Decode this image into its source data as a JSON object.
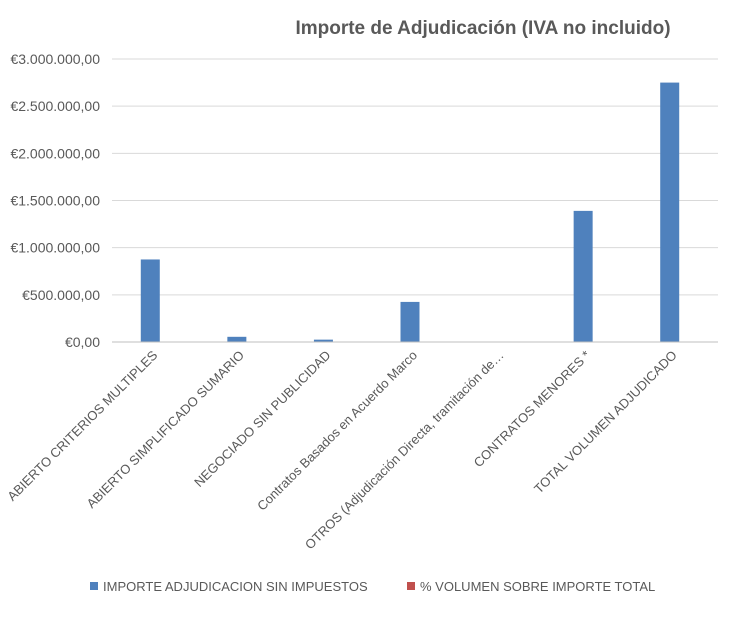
{
  "chart_data": {
    "type": "bar",
    "title": "Importe de Adjudicación (IVA no incluido)",
    "xlabel": "",
    "ylabel": "",
    "ylim": [
      0,
      3000000
    ],
    "yticks": [
      0,
      500000,
      1000000,
      1500000,
      2000000,
      2500000,
      3000000
    ],
    "ytick_labels": [
      "€0,00",
      "€500.000,00",
      "€1.000.000,00",
      "€1.500.000,00",
      "€2.000.000,00",
      "€2.500.000,00",
      "€3.000.000,00"
    ],
    "grid": true,
    "legend_position": "bottom",
    "categories": [
      "ABIERTO CRITERIOS MULTIPLES",
      "ABIERTO SIMPLIFICADO SUMARIO",
      "NEGOCIADO SIN PUBLICIDAD",
      "Contratos Basados en Acuerdo Marco",
      "OTROS (Adjudicación Directa, tramitación de…",
      "CONTRATOS MENORES *",
      "TOTAL VOLUMEN ADJUDICADO"
    ],
    "series": [
      {
        "name": "IMPORTE ADJUDICACION SIN IMPUESTOS",
        "color": "#4f81bd",
        "values": [
          875000,
          55000,
          25000,
          425000,
          0,
          1390000,
          2750000
        ]
      },
      {
        "name": "% VOLUMEN SOBRE IMPORTE TOTAL",
        "color": "#c0504d",
        "values": [
          0,
          0,
          0,
          0,
          0,
          0,
          0
        ]
      }
    ]
  }
}
